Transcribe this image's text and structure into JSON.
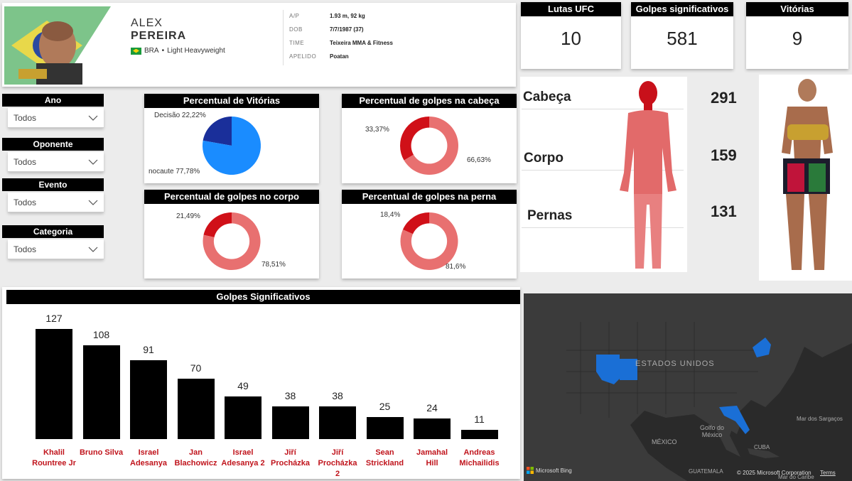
{
  "profile": {
    "first_name": "ALEX",
    "last_name": "PEREIRA",
    "country": "BRA",
    "division": "Light Heavyweight",
    "info": [
      {
        "key": "A/P",
        "value": "1.93 m, 92 kg"
      },
      {
        "key": "DOB",
        "value": "7/7/1987 (37)"
      },
      {
        "key": "TIME",
        "value": "Teixeira MMA & Fitness"
      },
      {
        "key": "APELIDO",
        "value": "Poatan"
      }
    ]
  },
  "kpis": [
    {
      "title": "Lutas UFC",
      "value": "10"
    },
    {
      "title": "Golpes significativos",
      "value": "581"
    },
    {
      "title": "Vitórias",
      "value": "9"
    }
  ],
  "slicers": [
    {
      "title": "Ano",
      "value": "Todos"
    },
    {
      "title": "Oponente",
      "value": "Todos"
    },
    {
      "title": "Evento",
      "value": "Todos"
    },
    {
      "title": "Categoria",
      "value": "Todos"
    }
  ],
  "donuts": {
    "vitorias": {
      "title": "Percentual de Vitórias",
      "label_a": "Decisão 22,22%",
      "label_b": "nocaute 77,78%",
      "value_a": 22.22,
      "color_a": "#1a2f9a",
      "color_b": "#1a8cff"
    },
    "cabeca": {
      "title": "Percentual de golpes na cabeça",
      "label_a": "33,37%",
      "label_b": "66,63%",
      "value_a": 33.37,
      "color_a": "#d01018",
      "color_b": "#e87070"
    },
    "corpo": {
      "title": "Percentual de golpes no corpo",
      "label_a": "21,49%",
      "label_b": "78,51%",
      "value_a": 21.49,
      "color_a": "#d01018",
      "color_b": "#e87070"
    },
    "perna": {
      "title": "Percentual de golpes na perna",
      "label_a": "18,4%",
      "label_b": "81,6%",
      "value_a": 18.4,
      "color_a": "#d01018",
      "color_b": "#e87070"
    }
  },
  "body_parts": [
    {
      "label": "Cabeça",
      "value": "291"
    },
    {
      "label": "Corpo",
      "value": "159"
    },
    {
      "label": "Pernas",
      "value": "131"
    }
  ],
  "chart_data": {
    "type": "bar",
    "title": "Golpes Significativos",
    "categories": [
      [
        "Khalil",
        "Rountree Jr"
      ],
      [
        "Bruno Silva"
      ],
      [
        "Israel",
        "Adesanya"
      ],
      [
        "Jan",
        "Blachowicz"
      ],
      [
        "Israel",
        "Adesanya 2"
      ],
      [
        "Jiří",
        "Procházka"
      ],
      [
        "Jiří",
        "Procházka",
        "2"
      ],
      [
        "Sean",
        "Strickland"
      ],
      [
        "Jamahal",
        "Hill"
      ],
      [
        "Andreas",
        "Michailidis"
      ]
    ],
    "values": [
      127,
      108,
      91,
      70,
      49,
      38,
      38,
      25,
      24,
      11
    ],
    "bar_color": "#000000",
    "label_color": "#c0141c"
  },
  "map": {
    "country_label": "ESTADOS UNIDOS",
    "labels": [
      "MÉXICO",
      "Golfo do México",
      "CUBA",
      "Mar dos Sargaços",
      "GUATEMALA",
      "Mar do Caribe"
    ],
    "brand": "Microsoft Bing",
    "copyright": "© 2025 Microsoft Corporation",
    "terms": "Terms",
    "land_color": "#3a3a3a",
    "highlight_color": "#1a6fd6"
  }
}
